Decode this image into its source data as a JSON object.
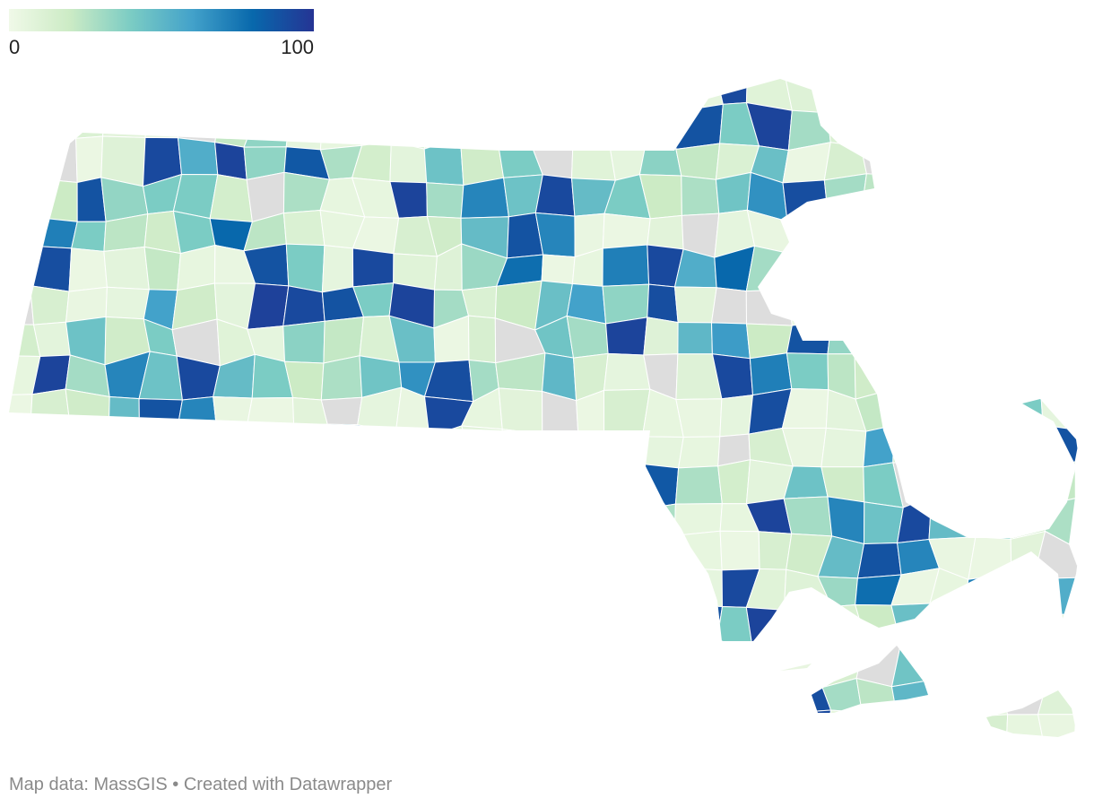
{
  "legend": {
    "min_label": "0",
    "max_label": "100",
    "stops": [
      "#f0f9e8",
      "#ccebc5",
      "#7bccc4",
      "#43a2ca",
      "#0868ac",
      "#253494"
    ],
    "no_data_color": "#dddddd"
  },
  "footer": {
    "credit": "Map data: MassGIS • Created with Datawrapper"
  },
  "map": {
    "region": "Massachusetts",
    "value_range": [
      0,
      100
    ],
    "towns": [
      {
        "v": 6
      },
      {
        "v": 4
      },
      {
        "v": 92
      },
      {
        "v": 5
      },
      {
        "v": 8
      },
      {
        "v": null
      },
      {
        "v": 3
      },
      {
        "v": 14
      },
      {
        "v": 5
      },
      {
        "v": 4
      },
      {
        "v": 6
      },
      {
        "v": 90
      },
      {
        "v": 3
      },
      {
        "v": 7
      },
      {
        "v": 22
      },
      {
        "v": 5
      },
      {
        "v": 4
      },
      {
        "v": 88
      },
      {
        "v": 40
      },
      {
        "v": 6
      },
      {
        "v": 92
      },
      {
        "v": 9
      },
      {
        "v": 10
      },
      {
        "v": 32
      },
      {
        "v": 78
      },
      {
        "v": 3
      },
      {
        "v": 5
      },
      {
        "v": 72
      },
      {
        "v": 92
      },
      {
        "v": 55
      },
      {
        "v": 80
      },
      {
        "v": 30
      },
      {
        "v": 12
      },
      {
        "v": 8
      },
      {
        "v": 4
      },
      {
        "v": null
      },
      {
        "v": 22
      },
      {
        "v": 35
      },
      {
        "v": 6
      },
      {
        "v": 5
      },
      {
        "v": null
      },
      {
        "v": 14
      },
      {
        "v": 4
      },
      {
        "v": 6
      },
      {
        "v": 60
      },
      {
        "v": 18
      },
      {
        "v": 7
      },
      {
        "v": 95
      },
      {
        "v": 92
      },
      {
        "v": 88
      },
      {
        "v": 40
      },
      {
        "v": 94
      },
      {
        "v": 30
      },
      {
        "v": 12
      },
      {
        "v": 20
      },
      {
        "v": 46
      },
      {
        "v": 60
      },
      {
        "v": 35
      },
      {
        "v": 90
      },
      {
        "v": 8
      },
      {
        "v": null
      },
      {
        "v": null
      },
      {
        "v": 3
      },
      {
        "v": 10
      },
      {
        "v": 92
      },
      {
        "v": 55
      },
      {
        "v": 94
      },
      {
        "v": 35
      },
      {
        "v": 86
      },
      {
        "v": 28
      },
      {
        "v": 16
      },
      {
        "v": 7
      },
      {
        "v": 45
      },
      {
        "v": 18
      },
      {
        "v": 40
      },
      {
        "v": null
      },
      {
        "v": 9
      },
      {
        "v": 6
      },
      {
        "v": 36
      },
      {
        "v": 22
      },
      {
        "v": 12
      },
      {
        "v": 46
      },
      {
        "v": 3
      },
      {
        "v": 14
      },
      {
        "v": null
      },
      {
        "v": 44
      },
      {
        "v": 30
      },
      {
        "v": 94
      },
      {
        "v": 10
      },
      {
        "v": 50
      },
      {
        "v": 62
      },
      {
        "v": 20
      },
      {
        "v": 88
      },
      {
        "v": 34
      },
      {
        "v": 40
      },
      {
        "v": 40
      },
      {
        "v": 16
      },
      {
        "v": null
      },
      {
        "v": 28
      },
      {
        "v": 5
      },
      {
        "v": 5
      },
      {
        "v": 94
      },
      {
        "v": 30
      },
      {
        "v": 70
      },
      {
        "v": 45
      },
      {
        "v": 92
      },
      {
        "v": 48
      },
      {
        "v": 40
      },
      {
        "v": 20
      },
      {
        "v": 28
      },
      {
        "v": 44
      },
      {
        "v": 66
      },
      {
        "v": 90
      },
      {
        "v": 30
      },
      {
        "v": 24
      },
      {
        "v": 50
      },
      {
        "v": 14
      },
      {
        "v": 6
      },
      {
        "v": null
      },
      {
        "v": 10
      },
      {
        "v": 92
      },
      {
        "v": 72
      },
      {
        "v": 40
      },
      {
        "v": 24
      },
      {
        "v": 18
      },
      {
        "v": 40
      },
      {
        "v": 80
      },
      {
        "v": 24
      },
      {
        "v": 12
      },
      {
        "v": 5
      },
      {
        "v": 3
      },
      {
        "v": 14
      },
      {
        "v": 18
      },
      {
        "v": 48
      },
      {
        "v": 88
      },
      {
        "v": 70
      },
      {
        "v": 4
      },
      {
        "v": 3
      },
      {
        "v": 8
      },
      {
        "v": null
      }
    ]
  }
}
